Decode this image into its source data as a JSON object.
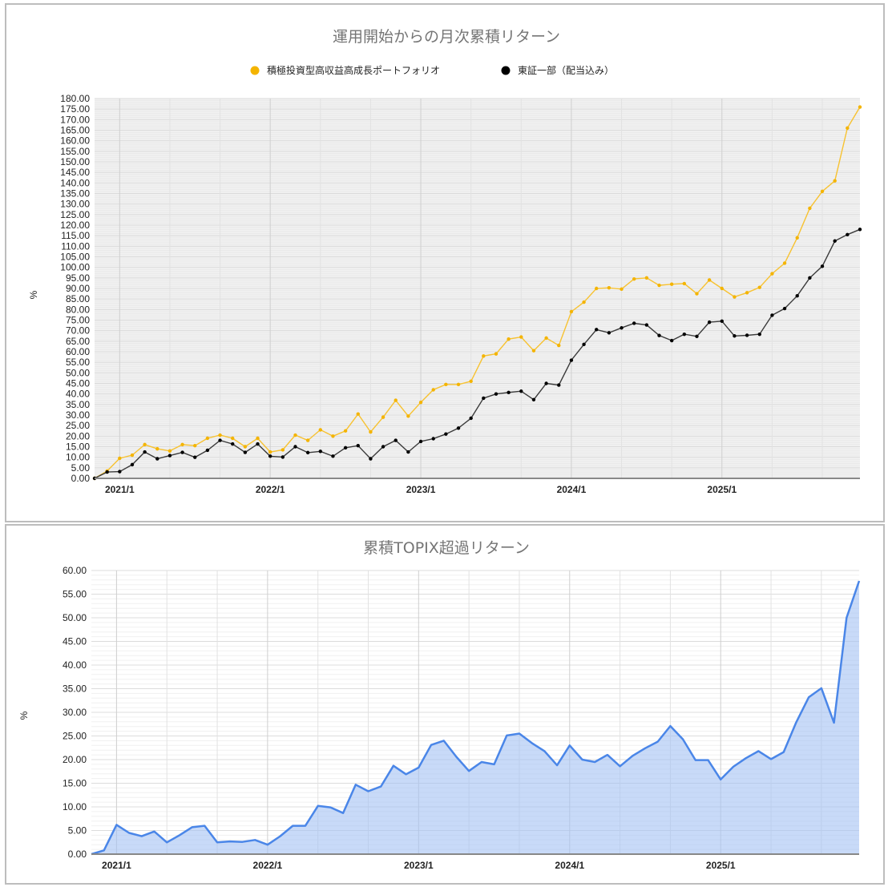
{
  "chart_data": [
    {
      "type": "line",
      "title": "運用開始からの月次累積リターン",
      "xlabel": "",
      "ylabel": "%",
      "ylim": [
        0,
        180
      ],
      "ytick_step": 5,
      "x_start": "2020/11",
      "x_end": "2025/12",
      "x_tick_labels": [
        "2021/1",
        "2022/1",
        "2023/1",
        "2024/1",
        "2025/1"
      ],
      "grid": true,
      "legend_position": "top",
      "series": [
        {
          "name": "積極投資型高収益高成長ポートフォリオ",
          "color": "#f4b400",
          "values": [
            0,
            3.5,
            9.5,
            11,
            16,
            14,
            13,
            16,
            15.5,
            19,
            20.5,
            19,
            15,
            19,
            12.5,
            13.5,
            20.5,
            18,
            23,
            20,
            22.5,
            30.5,
            22,
            29,
            37,
            29.5,
            36,
            42,
            44.5,
            44.5,
            46,
            58,
            59,
            66,
            67,
            60.5,
            66.5,
            63,
            79,
            83.5,
            90,
            90.3,
            89.7,
            94.5,
            95,
            91.5,
            92,
            92.3,
            87.5,
            94,
            90,
            86,
            88,
            90.5,
            97,
            102,
            114,
            128,
            136,
            141,
            166,
            176
          ]
        },
        {
          "name": "東証一部（配当込み）",
          "color": "#000000",
          "values": [
            0,
            3,
            3.2,
            6.5,
            12.5,
            9.3,
            10.8,
            12.3,
            10,
            13.3,
            18,
            16.3,
            12.3,
            16.3,
            10.5,
            10.1,
            15,
            12.2,
            12.8,
            10.5,
            14.5,
            15.5,
            9.3,
            15,
            18,
            12.5,
            17.5,
            18.8,
            21,
            23.8,
            28.5,
            38,
            40,
            40.7,
            41.3,
            37.3,
            45,
            44.2,
            56,
            63.5,
            70.5,
            69,
            71.3,
            73.5,
            72.7,
            67.7,
            65.3,
            68.3,
            67.3,
            74,
            74.5,
            67.5,
            67.8,
            68.3,
            77.3,
            80.5,
            86.5,
            95,
            100.5,
            112.5,
            115.5,
            118
          ]
        }
      ]
    },
    {
      "type": "area",
      "title": "累積TOPIX超過リターン",
      "xlabel": "",
      "ylabel": "%",
      "ylim": [
        0,
        60
      ],
      "ytick_step": 5,
      "x_start": "2020/11",
      "x_end": "2025/12",
      "x_tick_labels": [
        "2021/1",
        "2022/1",
        "2023/1",
        "2024/1",
        "2025/1"
      ],
      "grid": true,
      "legend_position": "none",
      "series": [
        {
          "name": "累積TOPIX超過リターン",
          "color": "#4a86e8",
          "values": [
            0,
            0.8,
            6.2,
            4.5,
            3.8,
            4.8,
            2.5,
            4,
            5.7,
            6,
            2.5,
            2.7,
            2.6,
            3,
            2,
            3.8,
            6,
            6,
            10.2,
            9.9,
            8.7,
            14.7,
            13.3,
            14.3,
            18.7,
            16.9,
            18.3,
            23.1,
            24,
            20.6,
            17.6,
            19.5,
            19,
            25.1,
            25.5,
            23.5,
            21.8,
            18.8,
            23,
            20,
            19.5,
            21,
            18.6,
            20.8,
            22.4,
            23.8,
            27.1,
            24.3,
            19.9,
            19.9,
            15.8,
            18.5,
            20.3,
            21.8,
            20.1,
            21.6,
            27.9,
            33.2,
            35.1,
            27.8,
            50,
            57.8
          ]
        }
      ]
    }
  ],
  "top_chart": {
    "title": "運用開始からの月次累積リターン",
    "ylabel": "%",
    "legend": [
      {
        "label": "積極投資型高収益高成長ポートフォリオ",
        "color": "#f4b400"
      },
      {
        "label": "東証一部（配当込み）",
        "color": "#000000"
      }
    ]
  },
  "bottom_chart": {
    "title": "累積TOPIX超過リターン",
    "ylabel": "%"
  }
}
